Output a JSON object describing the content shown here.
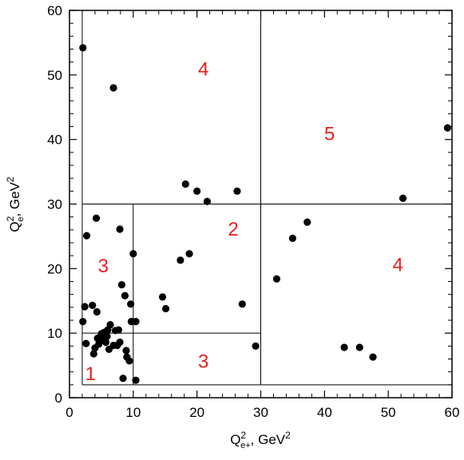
{
  "chart_data": {
    "type": "scatter",
    "xlim": [
      0,
      60
    ],
    "ylim": [
      0,
      60
    ],
    "xticks": [
      "0",
      "10",
      "20",
      "30",
      "40",
      "50",
      "60"
    ],
    "yticks": [
      "0",
      "10",
      "20",
      "30",
      "40",
      "50",
      "60"
    ],
    "xlabel": {
      "base": "Q",
      "sup": "2",
      "sub": "e+",
      "rest": ", GeV",
      "unit_sup": "2"
    },
    "ylabel": {
      "base": "Q",
      "sup": "2",
      "sub": "e",
      "rest": ", GeV",
      "unit_sup": "2"
    },
    "grid": false,
    "colors": {
      "points": "#000000",
      "region_labels": "#ee1c1c",
      "lines": "#000000"
    },
    "region_lines": [
      {
        "x1": 2,
        "y1": 2,
        "x2": 60,
        "y2": 2
      },
      {
        "x1": 2,
        "y1": 2,
        "x2": 2,
        "y2": 60
      },
      {
        "x1": 30,
        "y1": 2,
        "x2": 30,
        "y2": 60
      },
      {
        "x1": 2,
        "y1": 30,
        "x2": 60,
        "y2": 30
      },
      {
        "x1": 10,
        "y1": 2,
        "x2": 10,
        "y2": 30
      },
      {
        "x1": 2,
        "y1": 10,
        "x2": 30,
        "y2": 10
      }
    ],
    "region_labels": [
      {
        "text": "1",
        "x": 3.3,
        "y": 3.7
      },
      {
        "text": "3",
        "x": 5.3,
        "y": 20.4
      },
      {
        "text": "3",
        "x": 21.0,
        "y": 5.6
      },
      {
        "text": "2",
        "x": 25.7,
        "y": 26.1
      },
      {
        "text": "4",
        "x": 21.0,
        "y": 50.9
      },
      {
        "text": "5",
        "x": 40.8,
        "y": 40.9
      },
      {
        "text": "4",
        "x": 51.5,
        "y": 20.6
      }
    ],
    "points": [
      [
        2.1,
        54.2
      ],
      [
        6.9,
        48.0
      ],
      [
        18.2,
        33.1
      ],
      [
        20.0,
        32.0
      ],
      [
        21.6,
        30.4
      ],
      [
        26.3,
        32.0
      ],
      [
        52.3,
        30.9
      ],
      [
        59.3,
        41.8
      ],
      [
        32.5,
        18.4
      ],
      [
        35.0,
        24.7
      ],
      [
        37.3,
        27.2
      ],
      [
        43.1,
        7.8
      ],
      [
        45.5,
        7.8
      ],
      [
        47.6,
        6.3
      ],
      [
        27.1,
        14.5
      ],
      [
        29.2,
        8.0
      ],
      [
        17.4,
        21.3
      ],
      [
        18.8,
        22.3
      ],
      [
        14.6,
        15.6
      ],
      [
        15.1,
        13.8
      ],
      [
        2.7,
        25.1
      ],
      [
        4.2,
        27.8
      ],
      [
        7.9,
        26.1
      ],
      [
        10.0,
        22.3
      ],
      [
        2.1,
        11.8
      ],
      [
        2.4,
        14.1
      ],
      [
        3.6,
        14.3
      ],
      [
        4.3,
        13.3
      ],
      [
        8.2,
        17.5
      ],
      [
        8.7,
        15.8
      ],
      [
        9.6,
        14.5
      ],
      [
        9.7,
        11.8
      ],
      [
        10.4,
        11.8
      ],
      [
        2.6,
        8.4
      ],
      [
        3.8,
        6.8
      ],
      [
        4.0,
        7.7
      ],
      [
        4.4,
        9.2
      ],
      [
        4.6,
        8.3
      ],
      [
        5.0,
        9.9
      ],
      [
        5.1,
        9.0
      ],
      [
        5.4,
        10.1
      ],
      [
        5.7,
        8.6
      ],
      [
        5.9,
        9.5
      ],
      [
        6.0,
        10.5
      ],
      [
        6.2,
        7.5
      ],
      [
        6.4,
        11.3
      ],
      [
        6.9,
        8.1
      ],
      [
        7.2,
        10.4
      ],
      [
        7.5,
        8.1
      ],
      [
        7.7,
        10.5
      ],
      [
        7.9,
        8.6
      ],
      [
        8.4,
        3.0
      ],
      [
        8.9,
        7.3
      ],
      [
        9.0,
        6.3
      ],
      [
        9.4,
        5.7
      ],
      [
        10.4,
        2.7
      ]
    ]
  }
}
